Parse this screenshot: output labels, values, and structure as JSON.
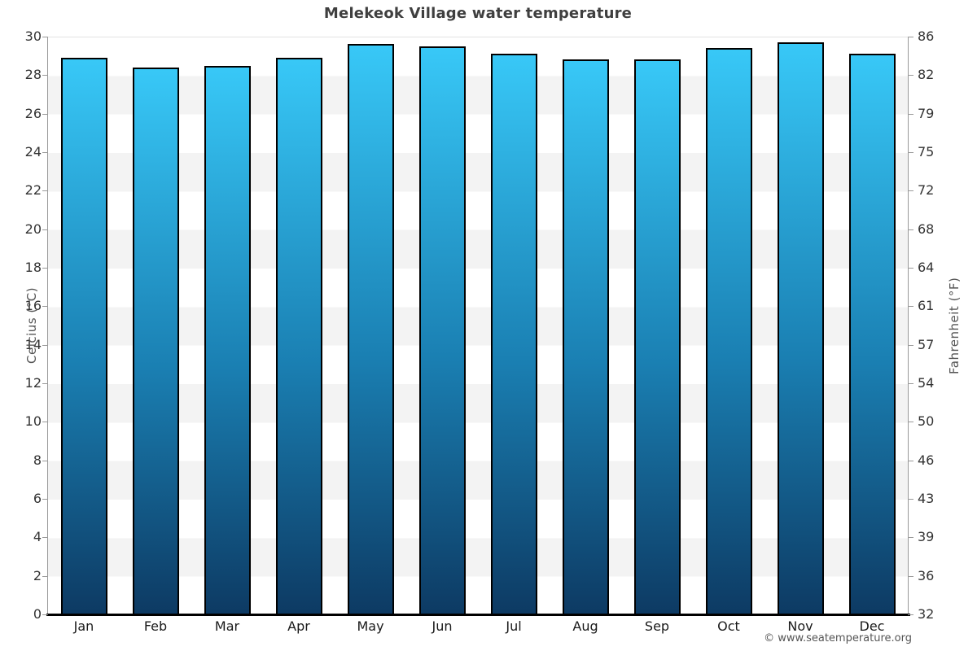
{
  "title": "Melekeok Village water temperature",
  "footer": "© www.seatemperature.org",
  "chart_data": {
    "type": "bar",
    "title": "Melekeok Village water temperature",
    "categories": [
      "Jan",
      "Feb",
      "Mar",
      "Apr",
      "May",
      "Jun",
      "Jul",
      "Aug",
      "Sep",
      "Oct",
      "Nov",
      "Dec"
    ],
    "values": [
      28.9,
      28.4,
      28.5,
      28.9,
      29.6,
      29.5,
      29.1,
      28.8,
      28.8,
      29.4,
      29.7,
      29.1
    ],
    "unit": "°C",
    "xlabel": "",
    "ylabel": "Celcius (°C)",
    "y2label": "Fahrenheit (°F)",
    "ylim": [
      0,
      30
    ],
    "yticks": [
      30,
      28,
      26,
      24,
      22,
      20,
      18,
      16,
      14,
      12,
      10,
      8,
      6,
      4,
      2,
      0
    ],
    "y2ticks": [
      86,
      82,
      79,
      75,
      72,
      68,
      64,
      61,
      57,
      54,
      50,
      46,
      43,
      39,
      36,
      32
    ],
    "grid": "alternating horizontal bands, white and light gray",
    "legend": "none"
  },
  "colors": {
    "bar_gradient_top": "#38c8f7",
    "bar_gradient_mid": "#1a7fb2",
    "bar_gradient_bottom": "#0d3a63",
    "bar_border": "#000000",
    "band_gray": "#f3f3f3",
    "band_white": "#ffffff",
    "axis_line": "#999999",
    "baseline": "#000000",
    "title_text": "#3f3f3f",
    "tick_text": "#333333",
    "axis_title_text": "#555555",
    "footer_text": "#555555"
  }
}
